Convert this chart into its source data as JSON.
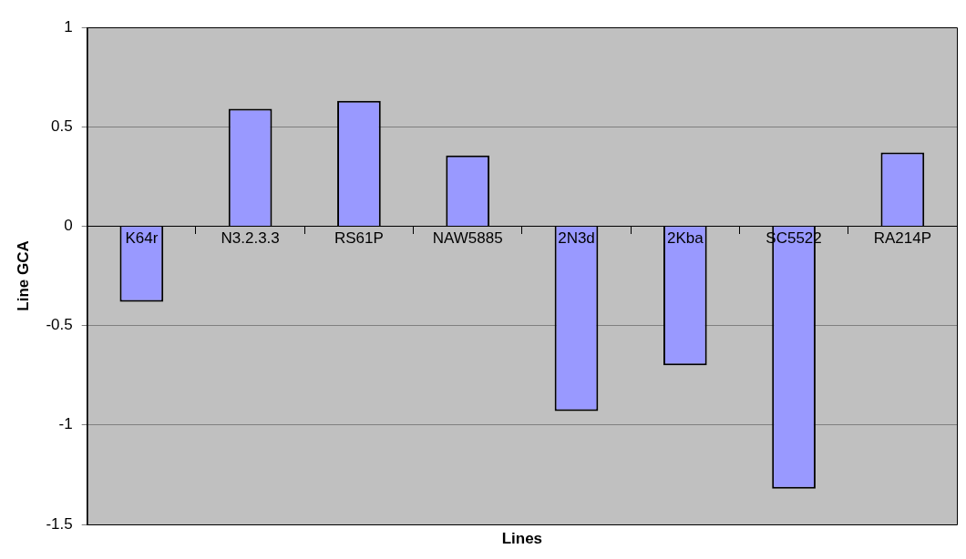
{
  "chart_data": {
    "type": "bar",
    "xlabel": "Lines",
    "ylabel": "Line GCA",
    "categories": [
      "K64r",
      "N3.2.3.3",
      "RS61P",
      "NAW5885",
      "2N3d",
      "2Kba",
      "SC5522",
      "RA214P"
    ],
    "values": [
      -0.38,
      0.59,
      0.63,
      0.355,
      -0.93,
      -0.7,
      -1.32,
      0.37
    ],
    "color": "#9999ff",
    "ylim": [
      -1.5,
      1
    ],
    "yticks": [
      -1.5,
      -1,
      -0.5,
      0,
      0.5,
      1
    ],
    "grid": "y",
    "legend": false
  }
}
